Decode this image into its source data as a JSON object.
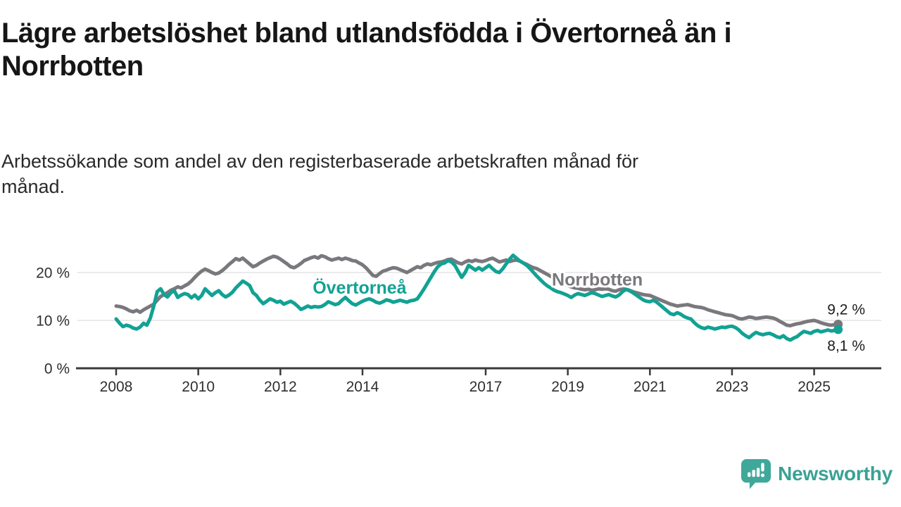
{
  "title": "Lägre arbetslöshet bland utlandsfödda i Övertorneå än i\nNorrbotten",
  "subtitle": "Arbetssökande som andel av den registerbaserade arbetskraften månad för\nmånad.",
  "footer": {
    "brand": "Newsworthy",
    "logo_icon": "speech-bubble-bar-chart-icon",
    "brand_color": "#38a294"
  },
  "chart_data": {
    "type": "line",
    "title": "",
    "xlabel": "",
    "ylabel": "",
    "x_start_year": 2008,
    "points_per_year": 12,
    "x_end_label": "2025-08",
    "xlim": [
      2007.9,
      2026.2
    ],
    "ylim": [
      0,
      25
    ],
    "grid": "horizontal-light",
    "x_tick_years": [
      2008,
      2010,
      2012,
      2014,
      2017,
      2019,
      2021,
      2023,
      2025
    ],
    "y_ticks": [
      {
        "value": 20,
        "label": "20 %"
      },
      {
        "value": 10,
        "label": "10 %"
      },
      {
        "value": 0,
        "label": "0 %"
      }
    ],
    "axis_color": "#3a3a3a",
    "grid_color": "#e3e3e3",
    "series": [
      {
        "name": "Norrbotten",
        "color": "#7b787d",
        "end_label": "9,2 %",
        "end_value": 9.2,
        "end_label_dy": -14,
        "label": {
          "x_year": 2019.72,
          "y_value": 18.6
        },
        "values": [
          13.0,
          12.9,
          12.7,
          12.4,
          12.0,
          11.8,
          12.1,
          11.7,
          12.2,
          12.6,
          13.0,
          13.4,
          14.2,
          15.0,
          15.4,
          15.8,
          16.3,
          16.6,
          17.0,
          16.8,
          17.2,
          17.6,
          18.2,
          19.0,
          19.7,
          20.3,
          20.7,
          20.4,
          20.0,
          19.7,
          19.9,
          20.4,
          21.0,
          21.7,
          22.3,
          22.9,
          22.6,
          23.0,
          22.4,
          21.8,
          21.2,
          21.5,
          22.0,
          22.4,
          22.8,
          23.1,
          23.4,
          23.2,
          22.8,
          22.3,
          21.8,
          21.2,
          21.0,
          21.4,
          21.9,
          22.5,
          22.8,
          23.1,
          23.3,
          23.0,
          23.5,
          23.3,
          22.9,
          22.6,
          22.8,
          23.0,
          22.7,
          23.0,
          22.8,
          22.5,
          22.4,
          22.0,
          21.6,
          21.0,
          20.2,
          19.4,
          19.2,
          19.8,
          20.3,
          20.5,
          20.8,
          21.0,
          20.9,
          20.6,
          20.3,
          20.0,
          20.4,
          20.8,
          21.2,
          21.0,
          21.5,
          21.8,
          21.6,
          21.9,
          22.1,
          22.2,
          22.4,
          22.7,
          22.8,
          22.4,
          22.0,
          21.8,
          22.2,
          22.5,
          22.3,
          22.6,
          22.4,
          22.3,
          22.5,
          22.8,
          23.0,
          22.6,
          22.2,
          22.4,
          22.6,
          22.3,
          22.5,
          22.6,
          22.4,
          22.0,
          21.7,
          21.3,
          21.0,
          20.8,
          20.4,
          20.0,
          19.6,
          19.2,
          18.8,
          18.4,
          18.0,
          17.6,
          17.3,
          17.0,
          16.8,
          16.7,
          16.5,
          16.4,
          16.5,
          16.3,
          16.4,
          16.6,
          16.5,
          16.6,
          16.5,
          16.2,
          16.1,
          16.4,
          16.6,
          16.5,
          16.3,
          16.0,
          15.8,
          15.6,
          15.4,
          15.3,
          15.2,
          14.9,
          14.6,
          14.3,
          14.0,
          13.7,
          13.4,
          13.2,
          13.0,
          13.1,
          13.2,
          13.3,
          13.1,
          12.9,
          12.8,
          12.7,
          12.5,
          12.2,
          12.0,
          11.8,
          11.6,
          11.4,
          11.2,
          11.1,
          11.0,
          10.7,
          10.4,
          10.3,
          10.5,
          10.7,
          10.6,
          10.4,
          10.5,
          10.6,
          10.7,
          10.6,
          10.5,
          10.2,
          9.8,
          9.4,
          9.0,
          8.9,
          9.1,
          9.3,
          9.4,
          9.6,
          9.8,
          9.9,
          10.0,
          9.8,
          9.5,
          9.3,
          9.1,
          9.0,
          9.1,
          9.2
        ]
      },
      {
        "name": "Övertorneå",
        "color": "#11a294",
        "end_label": "8,1 %",
        "end_value": 8.1,
        "end_label_dy": 30,
        "label": {
          "x_year": 2013.93,
          "y_value": 16.9
        },
        "values": [
          10.3,
          9.4,
          8.7,
          9.0,
          8.8,
          8.4,
          8.2,
          8.6,
          9.4,
          9.0,
          10.5,
          13.0,
          16.0,
          16.6,
          15.4,
          14.9,
          15.8,
          16.2,
          14.8,
          15.3,
          15.6,
          15.4,
          14.7,
          15.3,
          14.5,
          15.2,
          16.6,
          15.9,
          15.2,
          15.8,
          16.2,
          15.4,
          14.9,
          15.3,
          15.9,
          16.8,
          17.5,
          18.2,
          17.8,
          17.3,
          15.8,
          15.2,
          14.2,
          13.5,
          14.0,
          14.5,
          14.2,
          13.8,
          14.0,
          13.4,
          13.7,
          14.0,
          13.6,
          13.0,
          12.3,
          12.6,
          13.0,
          12.7,
          12.9,
          12.8,
          12.9,
          13.3,
          13.9,
          13.6,
          13.3,
          13.5,
          14.2,
          14.8,
          14.1,
          13.5,
          13.2,
          13.6,
          14.0,
          14.3,
          14.5,
          14.2,
          13.8,
          13.6,
          13.9,
          14.3,
          14.1,
          13.8,
          14.0,
          14.2,
          14.0,
          13.8,
          14.1,
          14.2,
          14.5,
          15.5,
          16.6,
          17.8,
          19.0,
          20.2,
          21.2,
          21.8,
          22.0,
          22.5,
          22.2,
          21.5,
          20.2,
          19.0,
          20.0,
          21.5,
          21.0,
          20.5,
          21.0,
          20.5,
          21.0,
          21.5,
          20.8,
          20.2,
          20.0,
          20.8,
          21.8,
          22.8,
          23.6,
          23.0,
          22.4,
          22.0,
          21.5,
          20.8,
          20.0,
          19.2,
          18.5,
          17.8,
          17.2,
          16.8,
          16.3,
          16.0,
          15.8,
          15.5,
          15.2,
          14.8,
          15.3,
          15.6,
          15.4,
          15.2,
          15.5,
          15.8,
          15.6,
          15.3,
          15.0,
          15.2,
          15.4,
          15.1,
          14.9,
          15.3,
          16.0,
          16.5,
          16.2,
          15.8,
          15.3,
          14.8,
          14.3,
          14.0,
          13.9,
          14.2,
          13.8,
          13.2,
          12.6,
          12.0,
          11.4,
          11.2,
          11.6,
          11.3,
          10.8,
          10.5,
          10.3,
          9.5,
          8.9,
          8.5,
          8.3,
          8.6,
          8.4,
          8.2,
          8.4,
          8.6,
          8.5,
          8.7,
          8.8,
          8.5,
          8.0,
          7.3,
          6.8,
          6.4,
          7.0,
          7.5,
          7.2,
          7.0,
          7.2,
          7.3,
          7.0,
          6.6,
          6.4,
          6.8,
          6.2,
          5.9,
          6.3,
          6.6,
          7.2,
          7.7,
          7.5,
          7.3,
          7.7,
          7.9,
          7.6,
          7.8,
          8.0,
          7.8,
          7.9,
          8.1
        ]
      }
    ]
  }
}
